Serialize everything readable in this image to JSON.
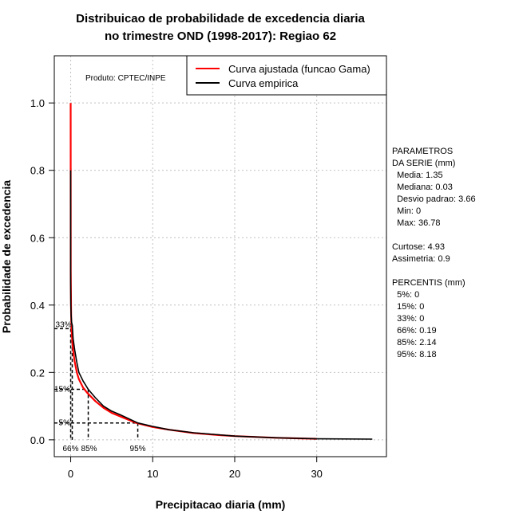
{
  "chart_data": {
    "type": "line",
    "title": "Distribuicao de probabilidade de excedencia diaria",
    "subtitle": "no trimestre OND (1998-2017): Regiao 62",
    "xlabel": "Precipitacao diaria (mm)",
    "ylabel": "Probabilidade de excedencia",
    "xlim": [
      -2.0,
      38.5
    ],
    "ylim": [
      -0.05,
      1.14
    ],
    "x_ticks": [
      0,
      10,
      20,
      30
    ],
    "y_ticks": [
      0.0,
      0.2,
      0.4,
      0.6,
      0.8,
      1.0
    ],
    "x_tick_labels": [
      "0",
      "10",
      "20",
      "30"
    ],
    "y_tick_labels": [
      "0.0",
      "0.2",
      "0.4",
      "0.6",
      "0.8",
      "1.0"
    ],
    "grid": true,
    "product_note": "Produto: CPTEC/INPE",
    "legend": {
      "position": "top-right",
      "entries": [
        {
          "label": "Curva ajustada (funcao Gama)",
          "color": "#ff0000"
        },
        {
          "label": "Curva empirica",
          "color": "#000000"
        }
      ]
    },
    "series": [
      {
        "name": "Curva ajustada (funcao Gama)",
        "color": "#ff0000",
        "x": [
          0,
          0.01,
          0.05,
          0.1,
          0.2,
          0.3,
          0.5,
          0.75,
          1.0,
          1.5,
          2.0,
          3.0,
          4.0,
          5.0,
          6.0,
          8.0,
          10.0,
          12.0,
          15.0,
          18.0,
          20.0,
          25.0,
          30.0
        ],
        "y": [
          1.0,
          0.5,
          0.37,
          0.33,
          0.29,
          0.265,
          0.23,
          0.2,
          0.18,
          0.155,
          0.14,
          0.115,
          0.095,
          0.08,
          0.07,
          0.05,
          0.038,
          0.03,
          0.02,
          0.014,
          0.011,
          0.006,
          0.003
        ]
      },
      {
        "name": "Curva empirica",
        "color": "#000000",
        "x": [
          0,
          0,
          0.02,
          0.05,
          0.1,
          0.19,
          0.3,
          0.5,
          0.75,
          1.0,
          1.5,
          2.14,
          3.0,
          4.0,
          5.0,
          6.0,
          8.18,
          10.0,
          12.0,
          15.0,
          18.0,
          20.0,
          25.0,
          30.0,
          36.78
        ],
        "y": [
          0.8,
          0.47,
          0.4,
          0.37,
          0.35,
          0.34,
          0.3,
          0.265,
          0.23,
          0.2,
          0.175,
          0.15,
          0.125,
          0.1,
          0.085,
          0.075,
          0.05,
          0.04,
          0.03,
          0.021,
          0.015,
          0.011,
          0.006,
          0.003,
          0.002
        ]
      }
    ],
    "percentile_markers": [
      {
        "label": "33%",
        "x": 0,
        "y": 0.33,
        "x_label": ""
      },
      {
        "label": "15%",
        "x": 2.14,
        "y": 0.15,
        "x_label": "85%"
      },
      {
        "label": "5%",
        "x": 8.18,
        "y": 0.05,
        "x_label": "95%"
      },
      {
        "label": "",
        "x": 0.19,
        "y": 0.34,
        "x_label": "66%"
      }
    ]
  },
  "stats_panel": {
    "lines": [
      "PARAMETROS",
      "DA SERIE (mm)",
      "  Media: 1.35",
      "  Mediana: 0.03",
      "  Desvio padrao: 3.66",
      "  Min: 0",
      "  Max: 36.78",
      "",
      "Curtose: 4.93",
      "Assimetria: 0.9",
      "",
      "PERCENTIS (mm)",
      "  5%: 0",
      "  15%: 0",
      "  33%: 0",
      "  66%: 0.19",
      "  85%: 2.14",
      "  95%: 8.18"
    ]
  }
}
